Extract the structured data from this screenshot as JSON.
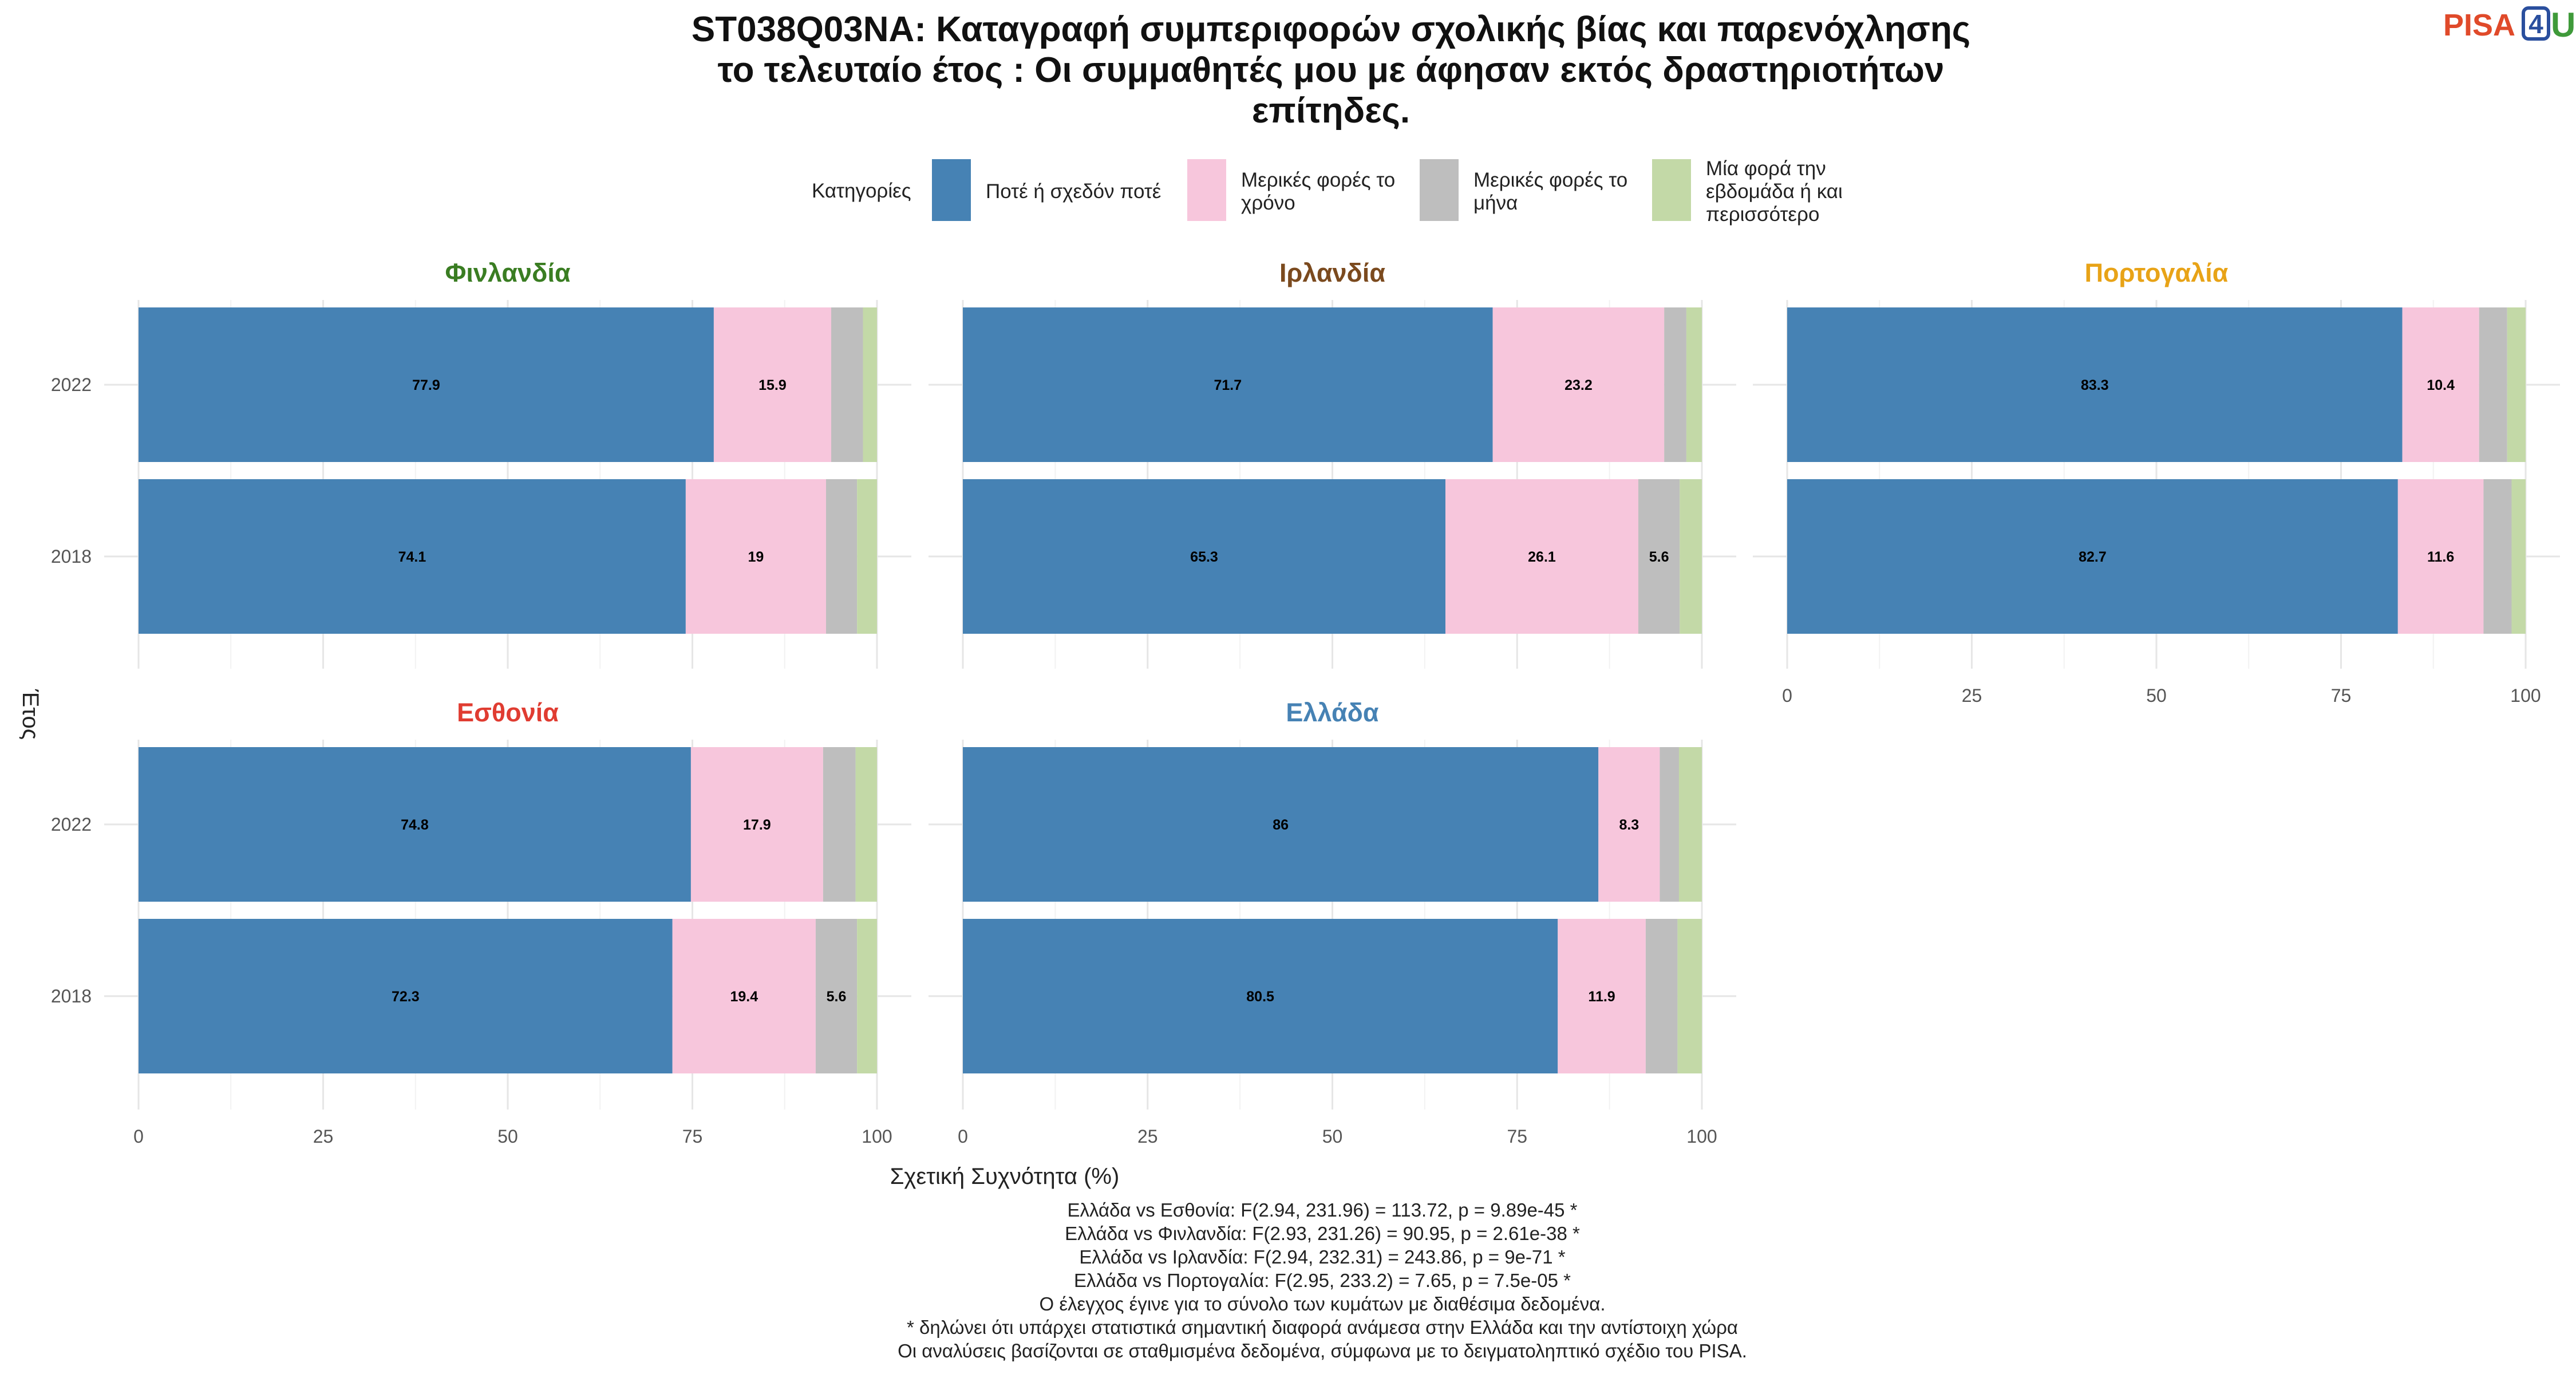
{
  "logo": {
    "pisa": "PISA",
    "four": "4",
    "u": "U"
  },
  "title_lines": [
    "ST038Q03NA: Καταγραφή συμπεριφορών σχολικής βίας και παρενόχλησης",
    "το τελευταίο έτος : Οι συμμαθητές μου με άφησαν εκτός δραστηριοτήτων",
    "επίτηδες."
  ],
  "legend": {
    "title": "Κατηγορίες",
    "items": [
      {
        "lines": [
          "Ποτέ ή σχεδόν ποτέ"
        ],
        "color": "#4682B4"
      },
      {
        "lines": [
          "Μερικές φορές το",
          "χρόνο"
        ],
        "color": "#F7C6DC"
      },
      {
        "lines": [
          "Μερικές φορές το",
          "μήνα"
        ],
        "color": "#BEBEBE"
      },
      {
        "lines": [
          "Μία φορά την",
          "εβδομάδα ή και",
          "περισσότερο"
        ],
        "color": "#C3D9A7"
      }
    ]
  },
  "axis": {
    "x_title": "Σχετική Συχνότητα (%)",
    "y_title": "Έτος",
    "x_ticks": [
      "0",
      "25",
      "50",
      "75",
      "100"
    ]
  },
  "chart_data": {
    "type": "bar",
    "orientation": "horizontal",
    "stacked": true,
    "xlim": [
      0,
      100
    ],
    "categories": [
      "2022",
      "2018"
    ],
    "series_names": [
      "Ποτέ ή σχεδόν ποτέ",
      "Μερικές φορές το χρόνο",
      "Μερικές φορές το μήνα",
      "Μία φορά την εβδομάδα ή και περισσότερο"
    ],
    "facets": [
      {
        "title": "Φινλανδία",
        "color": "#3A7D22",
        "bars": [
          {
            "year": "2022",
            "values": [
              77.9,
              15.9,
              4.3,
              1.9
            ],
            "labels": [
              "77.9",
              "15.9",
              "",
              ""
            ]
          },
          {
            "year": "2018",
            "values": [
              74.1,
              19.0,
              4.2,
              2.7
            ],
            "labels": [
              "74.1",
              "19",
              "",
              ""
            ]
          }
        ]
      },
      {
        "title": "Ιρλανδία",
        "color": "#7B4A1E",
        "bars": [
          {
            "year": "2022",
            "values": [
              71.7,
              23.2,
              3.0,
              2.1
            ],
            "labels": [
              "71.7",
              "23.2",
              "",
              ""
            ]
          },
          {
            "year": "2018",
            "values": [
              65.3,
              26.1,
              5.6,
              3.0
            ],
            "labels": [
              "65.3",
              "26.1",
              "5.6",
              ""
            ]
          }
        ]
      },
      {
        "title": "Πορτογαλία",
        "color": "#E8A317",
        "bars": [
          {
            "year": "2022",
            "values": [
              83.3,
              10.4,
              3.8,
              2.5
            ],
            "labels": [
              "83.3",
              "10.4",
              "",
              ""
            ]
          },
          {
            "year": "2018",
            "values": [
              82.7,
              11.6,
              3.8,
              1.9
            ],
            "labels": [
              "82.7",
              "11.6",
              "",
              ""
            ]
          }
        ]
      },
      {
        "title": "Εσθονία",
        "color": "#E03C31",
        "bars": [
          {
            "year": "2022",
            "values": [
              74.8,
              17.9,
              4.4,
              2.9
            ],
            "labels": [
              "74.8",
              "17.9",
              "",
              ""
            ]
          },
          {
            "year": "2018",
            "values": [
              72.3,
              19.4,
              5.6,
              2.7
            ],
            "labels": [
              "72.3",
              "19.4",
              "5.6",
              ""
            ]
          }
        ]
      },
      {
        "title": "Ελλάδα",
        "color": "#4682B4",
        "bars": [
          {
            "year": "2022",
            "values": [
              86.0,
              8.3,
              2.6,
              3.1
            ],
            "labels": [
              "86",
              "8.3",
              "",
              ""
            ]
          },
          {
            "year": "2018",
            "values": [
              80.5,
              11.9,
              4.3,
              3.3
            ],
            "labels": [
              "80.5",
              "11.9",
              "",
              ""
            ]
          }
        ]
      }
    ]
  },
  "caption_lines": [
    "Ελλάδα vs Εσθονία: F(2.94, 231.96) = 113.72, p = 9.89e-45 *",
    "Ελλάδα vs Φινλανδία: F(2.93, 231.26) = 90.95, p = 2.61e-38 *",
    "Ελλάδα vs Ιρλανδία: F(2.94, 232.31) = 243.86, p = 9e-71 *",
    "Ελλάδα vs Πορτογαλία: F(2.95, 233.2) = 7.65, p = 7.5e-05 *",
    "Ο έλεγχος έγινε για το σύνολο των κυμάτων με διαθέσιμα δεδομένα.",
    "* δηλώνει ότι υπάρχει στατιστικά σημαντική διαφορά ανάμεσα στην Ελλάδα και την αντίστοιχη χώρα",
    "Οι αναλύσεις βασίζονται σε σταθμισμένα δεδομένα, σύμφωνα με το δειγματοληπτικό σχέδιο του PISA."
  ]
}
